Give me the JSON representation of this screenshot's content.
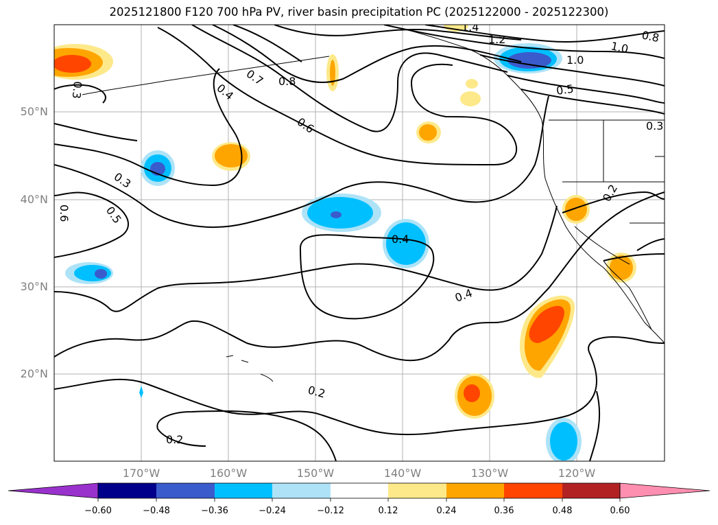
{
  "title": "2025121800 F120 700 hPa PV, river basin precipitation PC (2025122000 - 2025122300)",
  "map": {
    "lat_labels": [
      "50°N",
      "40°N",
      "30°N",
      "20°N"
    ],
    "lon_labels": [
      "170°W",
      "160°W",
      "150°W",
      "140°W",
      "130°W",
      "120°W"
    ],
    "contour_labels": [
      "1.4",
      "1.2",
      "1.0",
      "0.8",
      "0.5",
      "0.3",
      "0.7",
      "0.8",
      "0.4",
      "0.6",
      "0.3",
      "0.5",
      "0.6",
      "0.3",
      "0.4",
      "0.4",
      "0.2",
      "0.2",
      "0.2",
      "1.0"
    ],
    "colors": {
      "neg_strong": "#3a5bcc",
      "neg_mid": "#00bfff",
      "neg_light": "#aee3f7",
      "pos_light": "#fde98a",
      "pos_mid": "#ffa500",
      "pos_strong": "#ff4500"
    }
  },
  "colorbar": {
    "ticks": [
      "−0.60",
      "−0.48",
      "−0.36",
      "−0.24",
      "−0.12",
      "0.12",
      "0.24",
      "0.36",
      "0.48",
      "0.60"
    ],
    "colors": [
      "#9932cc",
      "#00008b",
      "#3a5bcc",
      "#00bfff",
      "#aee3f7",
      "#ffffff",
      "#fde98a",
      "#ffa500",
      "#ff4500",
      "#b22222",
      "#ff8fb0",
      "#ff8fb0"
    ]
  }
}
